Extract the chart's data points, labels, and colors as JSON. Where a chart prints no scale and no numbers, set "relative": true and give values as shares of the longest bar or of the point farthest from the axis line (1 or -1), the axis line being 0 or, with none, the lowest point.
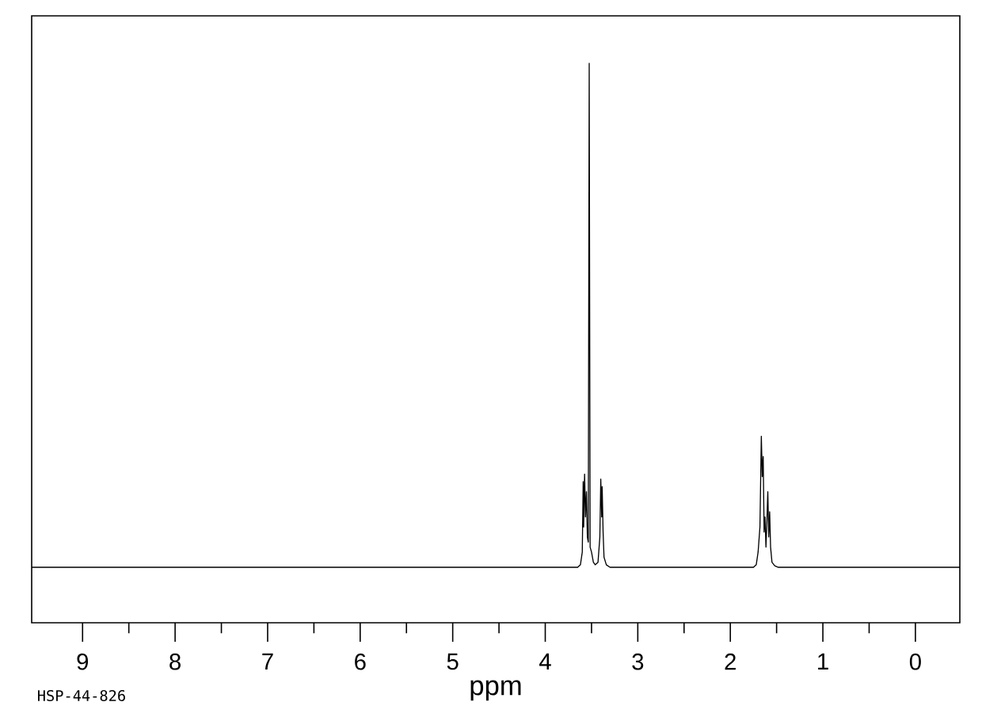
{
  "chart_data": {
    "type": "line",
    "relative": true,
    "xlabel": "ppm",
    "annotations": [
      "HSP-44-826"
    ],
    "xlim": [
      9.55,
      -0.48
    ],
    "xticks": [
      9,
      8,
      7,
      6,
      5,
      4,
      3,
      2,
      1,
      0
    ],
    "series": [
      {
        "color": "#000000",
        "x": [
          9.55,
          3.65,
          3.62,
          3.6,
          3.59,
          3.585,
          3.575,
          3.565,
          3.555,
          3.545,
          3.535,
          3.525,
          3.515,
          3.5,
          3.48,
          3.46,
          3.43,
          3.41,
          3.4,
          3.39,
          3.385,
          3.375,
          3.365,
          3.34,
          3.3,
          1.75,
          1.72,
          1.7,
          1.68,
          1.665,
          1.655,
          1.645,
          1.635,
          1.625,
          1.615,
          1.605,
          1.595,
          1.585,
          1.575,
          1.565,
          1.55,
          1.52,
          1.48,
          -0.48
        ],
        "values": [
          0,
          0,
          0.005,
          0.03,
          0.17,
          0.08,
          0.185,
          0.1,
          0.15,
          0.06,
          0.05,
          1.0,
          0.04,
          0.03,
          0.01,
          0.005,
          0.01,
          0.06,
          0.175,
          0.1,
          0.16,
          0.07,
          0.02,
          0.005,
          0,
          0,
          0.005,
          0.03,
          0.08,
          0.26,
          0.18,
          0.22,
          0.07,
          0.1,
          0.04,
          0.09,
          0.15,
          0.06,
          0.11,
          0.04,
          0.01,
          0.003,
          0,
          0
        ]
      }
    ]
  }
}
